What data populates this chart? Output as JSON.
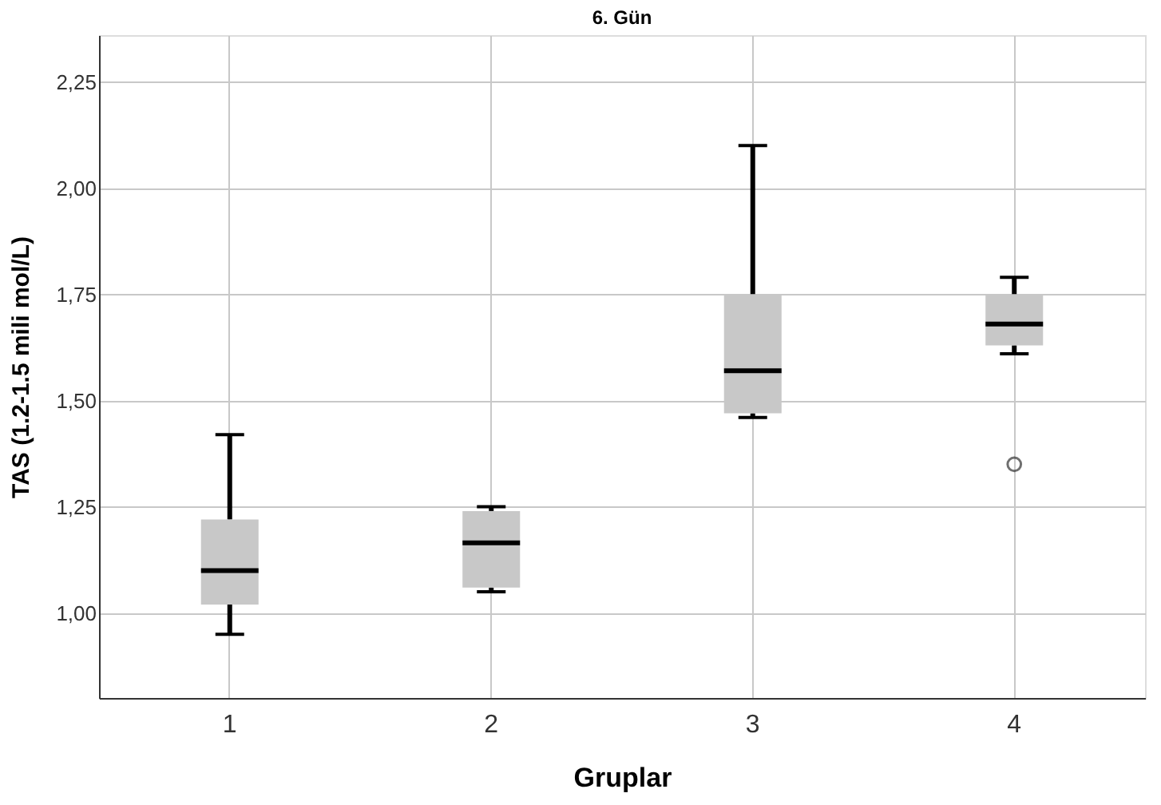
{
  "chart_data": {
    "type": "box",
    "title": "6. Gün",
    "xlabel": "Gruplar",
    "ylabel": "TAS (1.2-1.5 mili mol/L)",
    "categories": [
      "1",
      "2",
      "3",
      "4"
    ],
    "series": [
      {
        "color": "#c8c8c8",
        "boxes": [
          {
            "low": 0.95,
            "q1": 1.02,
            "median": 1.1,
            "q3": 1.22,
            "high": 1.42
          },
          {
            "low": 1.05,
            "q1": 1.06,
            "median": 1.165,
            "q3": 1.24,
            "high": 1.25
          },
          {
            "low": 1.46,
            "q1": 1.47,
            "median": 1.57,
            "q3": 1.75,
            "high": 2.1
          },
          {
            "low": 1.61,
            "q1": 1.63,
            "median": 1.68,
            "q3": 1.75,
            "high": 1.79,
            "outliers": [
              1.35
            ]
          }
        ]
      }
    ],
    "ylim": [
      0.8,
      2.36
    ],
    "yticks": [
      {
        "value": 1.0,
        "label": "1,00"
      },
      {
        "value": 1.25,
        "label": "1,25"
      },
      {
        "value": 1.5,
        "label": "1,50"
      },
      {
        "value": 1.75,
        "label": "1,75"
      },
      {
        "value": 2.0,
        "label": "2,00"
      },
      {
        "value": 2.25,
        "label": "2,25"
      }
    ],
    "grid": true
  }
}
